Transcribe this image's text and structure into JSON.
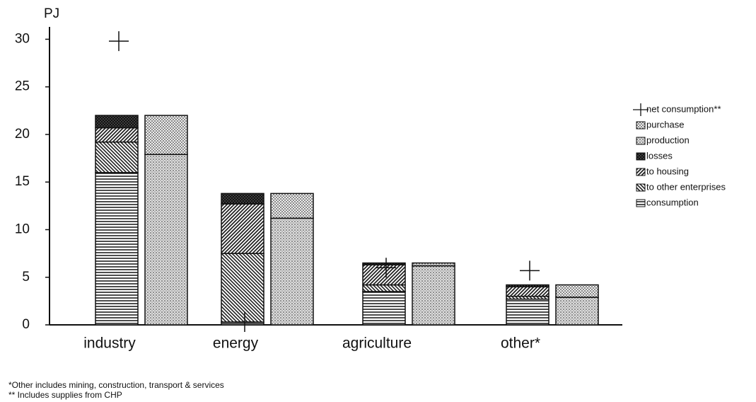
{
  "chart_data": {
    "type": "stacked_bar",
    "y_label": "PJ",
    "categories": [
      "industry",
      "energy",
      "agriculture",
      "other*"
    ],
    "series": [
      {
        "name": "net consumption**",
        "marker": "plus",
        "values": [
          29.8,
          0.3,
          6.0,
          5.7
        ]
      },
      {
        "name": "purchase",
        "stack": 1,
        "pattern": "light-dots",
        "values": [
          4.1,
          2.6,
          0.3,
          1.3
        ]
      },
      {
        "name": "production",
        "stack": 1,
        "pattern": "dense-dots",
        "values": [
          17.9,
          11.2,
          6.2,
          2.9
        ]
      },
      {
        "name": "losses",
        "stack": 0,
        "pattern": "crosshatch",
        "values": [
          1.3,
          1.1,
          0.2,
          0.2
        ]
      },
      {
        "name": "to housing",
        "stack": 0,
        "pattern": "diagonal",
        "values": [
          1.5,
          5.2,
          2.1,
          1.0
        ]
      },
      {
        "name": "to other enterprises",
        "stack": 0,
        "pattern": "back-diagonal",
        "values": [
          3.2,
          7.2,
          0.7,
          0.3
        ]
      },
      {
        "name": "consumption",
        "stack": 0,
        "pattern": "horizontal",
        "values": [
          16.0,
          0.3,
          3.5,
          2.7
        ]
      }
    ],
    "ylim": [
      0,
      31
    ],
    "yticks": [
      0,
      5,
      10,
      15,
      20,
      25,
      30
    ],
    "footnotes": [
      "*Other includes mining, construction, transport & services",
      "** Includes supplies from CHP"
    ]
  }
}
